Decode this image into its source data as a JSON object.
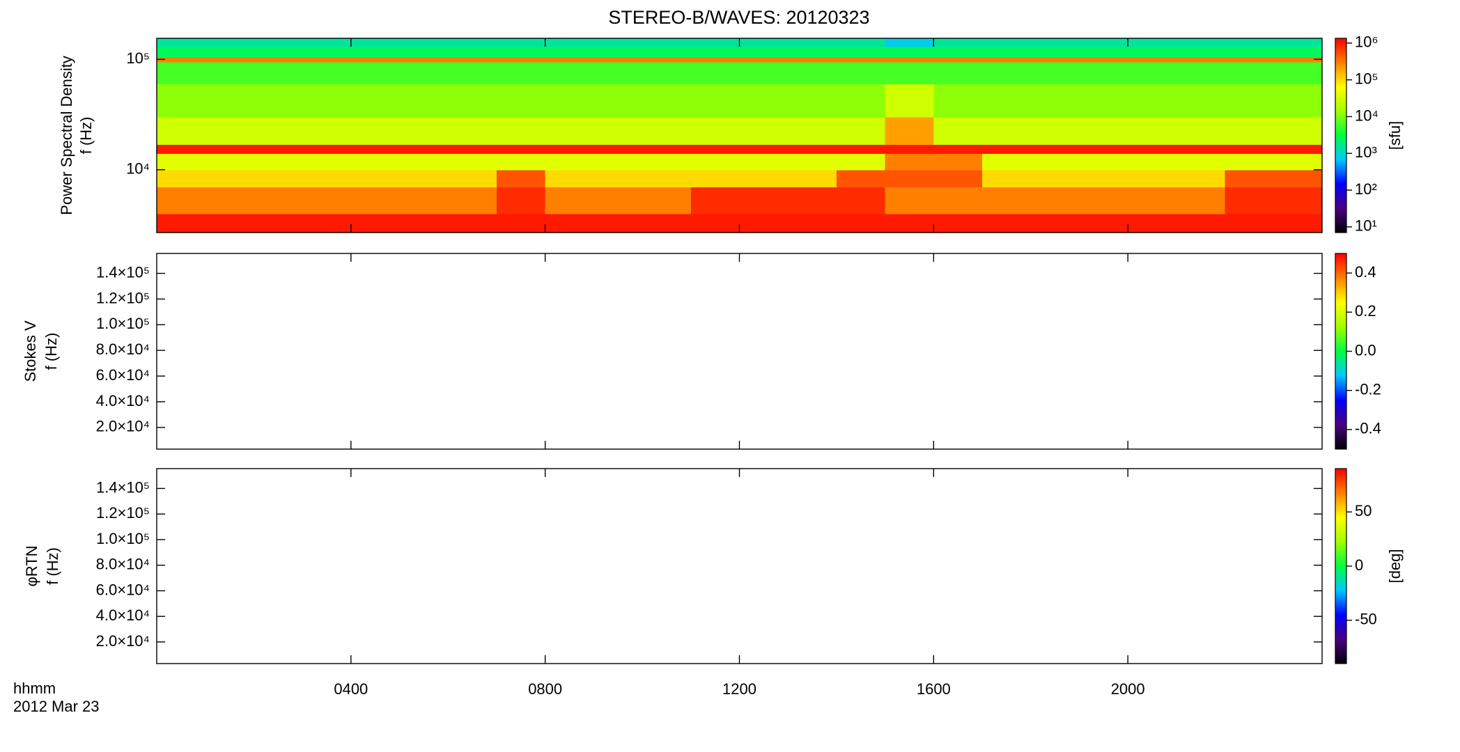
{
  "chart_data": [
    {
      "type": "heatmap",
      "title": "STEREO-B/WAVES: 20120323",
      "ylabel": [
        "Power Spectral Density",
        "f (Hz)"
      ],
      "ylog": true,
      "ylim": [
        2700,
        155000
      ],
      "yticks": [
        {
          "value": 10000,
          "label": "10⁴"
        },
        {
          "value": 100000,
          "label": "10⁵"
        }
      ],
      "xbins": [
        0,
        1,
        2,
        3,
        4,
        5,
        6,
        7,
        8,
        9,
        10,
        11,
        12,
        13,
        14,
        15,
        16,
        17,
        18,
        19,
        20,
        21,
        22,
        23,
        24
      ],
      "ybins": [
        2700,
        4000,
        7000,
        10000,
        14000,
        17000,
        30000,
        60000,
        95000,
        105000,
        130000,
        155000
      ],
      "z": [
        [
          1000000,
          1000000,
          1000000,
          1000000,
          1000000,
          1000000,
          1000000,
          1000000,
          1000000,
          1000000,
          1000000,
          1000000,
          1000000,
          1000000,
          1000000,
          1000000,
          1000000,
          1000000,
          1000000,
          1000000,
          1000000,
          1000000,
          1000000,
          1000000
        ],
        [
          300000,
          300000,
          300000,
          300000,
          300000,
          300000,
          300000,
          800000,
          300000,
          300000,
          300000,
          800000,
          800000,
          800000,
          800000,
          300000,
          300000,
          300000,
          300000,
          300000,
          300000,
          300000,
          800000,
          800000
        ],
        [
          100000,
          100000,
          100000,
          100000,
          100000,
          100000,
          100000,
          500000,
          100000,
          100000,
          100000,
          100000,
          100000,
          100000,
          500000,
          500000,
          500000,
          100000,
          100000,
          100000,
          100000,
          100000,
          500000,
          500000
        ],
        [
          40000,
          40000,
          40000,
          40000,
          40000,
          40000,
          40000,
          40000,
          40000,
          40000,
          40000,
          40000,
          40000,
          40000,
          40000,
          300000,
          300000,
          40000,
          40000,
          40000,
          40000,
          40000,
          40000,
          40000
        ],
        [
          1000000,
          1000000,
          1000000,
          1000000,
          1000000,
          1000000,
          1000000,
          1000000,
          1000000,
          1000000,
          1000000,
          1000000,
          1000000,
          1000000,
          1000000,
          1000000,
          1000000,
          1000000,
          1000000,
          1000000,
          1000000,
          1000000,
          1000000,
          1000000
        ],
        [
          30000,
          30000,
          30000,
          30000,
          30000,
          30000,
          30000,
          30000,
          30000,
          30000,
          30000,
          30000,
          30000,
          30000,
          30000,
          200000,
          30000,
          30000,
          30000,
          30000,
          30000,
          30000,
          30000,
          30000
        ],
        [
          12000,
          12000,
          12000,
          12000,
          12000,
          12000,
          12000,
          12000,
          12000,
          12000,
          12000,
          12000,
          12000,
          12000,
          12000,
          30000,
          12000,
          12000,
          12000,
          12000,
          12000,
          12000,
          12000,
          12000
        ],
        [
          6000,
          6000,
          6000,
          6000,
          6000,
          6000,
          6000,
          6000,
          6000,
          6000,
          6000,
          6000,
          6000,
          6000,
          6000,
          6000,
          6000,
          6000,
          6000,
          6000,
          6000,
          6000,
          6000,
          6000
        ],
        [
          300000,
          300000,
          300000,
          300000,
          300000,
          300000,
          300000,
          300000,
          300000,
          300000,
          300000,
          300000,
          300000,
          300000,
          300000,
          300000,
          300000,
          300000,
          300000,
          300000,
          300000,
          300000,
          300000,
          300000
        ],
        [
          2500,
          2500,
          2500,
          2500,
          2500,
          2500,
          2500,
          2500,
          2500,
          2500,
          2500,
          2500,
          2500,
          2500,
          2500,
          2500,
          2500,
          2500,
          2500,
          2500,
          2500,
          2500,
          2500,
          2500
        ],
        [
          1500,
          1500,
          1500,
          1500,
          1500,
          1500,
          1500,
          1500,
          1500,
          1500,
          1500,
          1500,
          1500,
          1500,
          1500,
          800,
          1500,
          1500,
          1500,
          1500,
          1500,
          1500,
          1500,
          1500
        ]
      ],
      "clog": true,
      "clim": [
        7,
        1350000
      ],
      "cticks": [
        {
          "value": 10,
          "label": "10¹"
        },
        {
          "value": 100,
          "label": "10²"
        },
        {
          "value": 1000,
          "label": "10³"
        },
        {
          "value": 10000,
          "label": "10⁴"
        },
        {
          "value": 100000,
          "label": "10⁵"
        },
        {
          "value": 1000000,
          "label": "10⁶"
        }
      ],
      "clabel": "[sfu]",
      "colormap": [
        "#000000",
        "#4b0082",
        "#0000ff",
        "#00c8ff",
        "#00ff40",
        "#a0ff00",
        "#ffff00",
        "#ff8000",
        "#ff0000"
      ]
    },
    {
      "type": "heatmap",
      "ylabel": [
        "Stokes V",
        "f (Hz)"
      ],
      "ylog": false,
      "ylim": [
        3100,
        155500
      ],
      "yticks": [
        {
          "value": 20000,
          "label": "2.0×10⁴"
        },
        {
          "value": 40000,
          "label": "4.0×10⁴"
        },
        {
          "value": 60000,
          "label": "6.0×10⁴"
        },
        {
          "value": 80000,
          "label": "8.0×10⁴"
        },
        {
          "value": 100000,
          "label": "1.0×10⁵"
        },
        {
          "value": 120000,
          "label": "1.2×10⁵"
        },
        {
          "value": 140000,
          "label": "1.4×10⁵"
        }
      ],
      "clog": false,
      "clim": [
        -0.5,
        0.5
      ],
      "cticks": [
        -0.4,
        -0.2,
        {
          "value": 0,
          "label": "0.0"
        },
        0.2,
        0.4
      ],
      "colormap": [
        "#000000",
        "#4b0082",
        "#0000ff",
        "#00c8ff",
        "#00ff40",
        "#a0ff00",
        "#ffff00",
        "#ff8000",
        "#ff0000"
      ]
    },
    {
      "type": "heatmap",
      "ylabel": [
        "φRTN",
        "f (Hz)"
      ],
      "ylog": false,
      "ylim": [
        3100,
        155500
      ],
      "yticks": [
        {
          "value": 20000,
          "label": "2.0×10⁴"
        },
        {
          "value": 40000,
          "label": "4.0×10⁴"
        },
        {
          "value": 60000,
          "label": "6.0×10⁴"
        },
        {
          "value": 80000,
          "label": "8.0×10⁴"
        },
        {
          "value": 100000,
          "label": "1.0×10⁵"
        },
        {
          "value": 120000,
          "label": "1.2×10⁵"
        },
        {
          "value": 140000,
          "label": "1.4×10⁵"
        }
      ],
      "clog": false,
      "clim": [
        -90,
        90
      ],
      "cticks": [
        -50,
        0,
        50
      ],
      "clabel": "[deg]",
      "colormap": [
        "#000000",
        "#4b0082",
        "#0000ff",
        "#00c8ff",
        "#00ff40",
        "#a0ff00",
        "#ffff00",
        "#ff8000",
        "#ff0000"
      ],
      "xlim": [
        0,
        24
      ],
      "xticks": [
        {
          "value": 4,
          "label": "0400"
        },
        {
          "value": 8,
          "label": "0800"
        },
        {
          "value": 12,
          "label": "1200"
        },
        {
          "value": 16,
          "label": "1600"
        },
        {
          "value": 20,
          "label": "2000"
        }
      ],
      "xlabel": "hhmm",
      "date": "2012 Mar 23"
    }
  ]
}
